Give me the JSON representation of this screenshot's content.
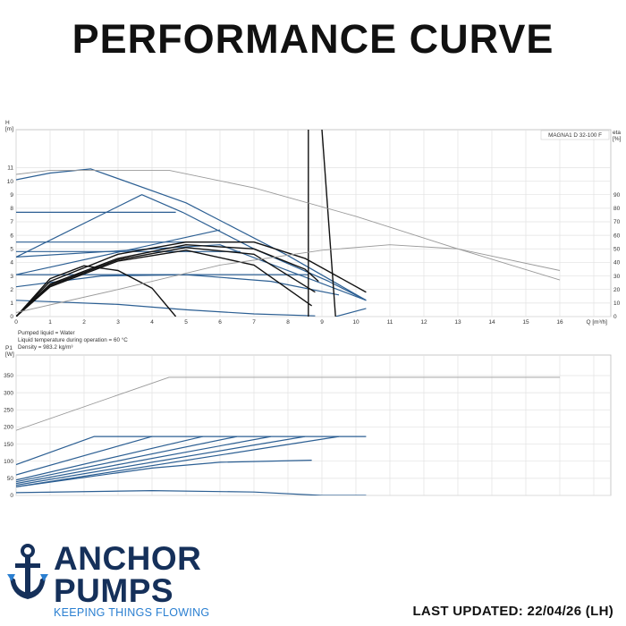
{
  "page": {
    "title": "PERFORMANCE CURVE"
  },
  "footer": {
    "brand_line1": "ANCHOR",
    "brand_line2": "PUMPS",
    "tagline": "KEEPING THINGS FLOWING",
    "last_updated": "LAST UPDATED: 22/04/26 (LH)"
  },
  "colors": {
    "curve_blue": "#2c5f93",
    "curve_black": "#111111",
    "curve_grey": "#9a9a9a",
    "brand_navy": "#15305a",
    "brand_blue": "#2a7fd1"
  },
  "chart_data": [
    {
      "type": "line",
      "model_label": "MAGNA1 D 32-100 F",
      "ylabel_lines": [
        "H",
        "[m]"
      ],
      "y2label_lines": [
        "eta",
        "[%]"
      ],
      "xlabel": "Q [m³/h]",
      "xlim": [
        0,
        17.5
      ],
      "ylim": [
        0,
        13.8
      ],
      "y2lim": [
        0,
        138
      ],
      "x_ticks": [
        "0",
        "1",
        "2",
        "3",
        "4",
        "5",
        "6",
        "7",
        "8",
        "9",
        "10",
        "11",
        "12",
        "13",
        "14",
        "15",
        "16"
      ],
      "y_ticks": [
        "0",
        "1",
        "2",
        "3",
        "4",
        "5",
        "6",
        "7",
        "8",
        "9",
        "10",
        "11"
      ],
      "y2_ticks": [
        "0",
        "10",
        "20",
        "30",
        "40",
        "50",
        "60",
        "70",
        "80",
        "90"
      ],
      "notes": [
        "Pumped liquid = Water",
        "Liquid temperature during operation = 60 °C",
        "Density = 983.2 kg/m³"
      ],
      "grid": true,
      "series": [
        {
          "color": "blue",
          "points": [
            [
              0,
              10.1
            ],
            [
              1,
              10.6
            ],
            [
              2.2,
              10.9
            ],
            [
              5,
              8.4
            ],
            [
              8,
              4.5
            ],
            [
              10.3,
              1.2
            ]
          ]
        },
        {
          "color": "blue",
          "points": [
            [
              0,
              7.7
            ],
            [
              4.7,
              7.7
            ]
          ]
        },
        {
          "color": "blue",
          "points": [
            [
              0,
              4.4
            ],
            [
              3.7,
              9.0
            ],
            [
              4.9,
              7.7
            ],
            [
              7,
              5.0
            ],
            [
              9.2,
              2.6
            ],
            [
              10.3,
              1.2
            ]
          ]
        },
        {
          "color": "blue",
          "points": [
            [
              0,
              5.5
            ],
            [
              6.6,
              5.5
            ]
          ]
        },
        {
          "color": "blue",
          "points": [
            [
              0,
              4.8
            ],
            [
              6.6,
              4.8
            ]
          ]
        },
        {
          "color": "blue",
          "points": [
            [
              0,
              4.4
            ],
            [
              6.0,
              5.3
            ],
            [
              10.3,
              1.2
            ]
          ]
        },
        {
          "color": "blue",
          "points": [
            [
              0,
              3.1
            ],
            [
              6.0,
              6.4
            ]
          ]
        },
        {
          "color": "blue",
          "points": [
            [
              0,
              3.1
            ],
            [
              8.6,
              3.1
            ]
          ]
        },
        {
          "color": "blue",
          "points": [
            [
              0,
              2.2
            ],
            [
              2.5,
              3.0
            ],
            [
              5,
              3.1
            ],
            [
              7.5,
              2.6
            ],
            [
              9.5,
              1.6
            ]
          ]
        },
        {
          "color": "blue",
          "points": [
            [
              0,
              1.2
            ],
            [
              3,
              0.9
            ],
            [
              5,
              0.5
            ],
            [
              7,
              0.2
            ],
            [
              8.8,
              0.05
            ]
          ]
        },
        {
          "color": "blue",
          "points": [
            [
              9.4,
              0
            ],
            [
              10.3,
              0.6
            ]
          ]
        },
        {
          "color": "black",
          "points": [
            [
              0,
              0
            ],
            [
              1,
              2.6
            ],
            [
              3,
              4.6
            ],
            [
              5,
              5.5
            ],
            [
              7,
              5.5
            ],
            [
              8.5,
              4.3
            ],
            [
              10.3,
              1.8
            ]
          ]
        },
        {
          "color": "black",
          "points": [
            [
              0,
              0
            ],
            [
              1,
              2.4
            ],
            [
              3,
              4.3
            ],
            [
              5,
              5.3
            ],
            [
              7,
              5.0
            ],
            [
              8.5,
              3.5
            ],
            [
              8.9,
              2.6
            ]
          ]
        },
        {
          "color": "black",
          "points": [
            [
              0,
              0
            ],
            [
              1,
              2.3
            ],
            [
              3,
              4.2
            ],
            [
              5,
              5.1
            ],
            [
              7,
              4.6
            ],
            [
              8.8,
              1.8
            ]
          ]
        },
        {
          "color": "black",
          "points": [
            [
              0,
              0
            ],
            [
              1,
              2.2
            ],
            [
              3,
              4.1
            ],
            [
              5,
              4.9
            ],
            [
              7,
              3.8
            ],
            [
              8.7,
              0.8
            ]
          ]
        },
        {
          "color": "black",
          "points": [
            [
              0,
              0
            ],
            [
              1,
              2.8
            ],
            [
              2,
              3.75
            ],
            [
              3,
              3.4
            ],
            [
              4,
              2.1
            ],
            [
              4.7,
              0
            ]
          ]
        },
        {
          "color": "black",
          "points": [
            [
              8.6,
              0
            ],
            [
              8.6,
              13.8
            ]
          ]
        },
        {
          "color": "black",
          "points": [
            [
              9.4,
              0
            ],
            [
              9.0,
              13.8
            ]
          ]
        },
        {
          "color": "grey",
          "points": [
            [
              0,
              10.5
            ],
            [
              1,
              10.8
            ],
            [
              4.5,
              10.8
            ],
            [
              7,
              9.5
            ],
            [
              10,
              7.4
            ],
            [
              13,
              5.0
            ],
            [
              16,
              3.4
            ]
          ]
        },
        {
          "color": "grey",
          "points": [
            [
              0,
              0.3
            ],
            [
              3,
              2.0
            ],
            [
              6,
              3.8
            ],
            [
              9,
              4.9
            ],
            [
              11,
              5.3
            ],
            [
              13,
              5.0
            ],
            [
              16,
              2.7
            ]
          ]
        }
      ]
    },
    {
      "type": "line",
      "ylabel_lines": [
        "P1",
        "[W]"
      ],
      "xlim": [
        0,
        17.5
      ],
      "ylim": [
        0,
        410
      ],
      "y_ticks": [
        "0",
        "50",
        "100",
        "150",
        "200",
        "250",
        "300",
        "350"
      ],
      "grid": true,
      "series": [
        {
          "color": "grey",
          "points": [
            [
              0,
              190
            ],
            [
              4.5,
              345
            ],
            [
              16,
              345
            ]
          ]
        },
        {
          "color": "blue",
          "points": [
            [
              0,
              90
            ],
            [
              2.3,
              172
            ],
            [
              10.3,
              172
            ]
          ]
        },
        {
          "color": "blue",
          "points": [
            [
              0,
              60
            ],
            [
              4,
              172
            ]
          ]
        },
        {
          "color": "blue",
          "points": [
            [
              0,
              45
            ],
            [
              5.5,
              172
            ]
          ]
        },
        {
          "color": "blue",
          "points": [
            [
              0,
              40
            ],
            [
              6.5,
              172
            ]
          ]
        },
        {
          "color": "blue",
          "points": [
            [
              0,
              35
            ],
            [
              7.5,
              172
            ]
          ]
        },
        {
          "color": "blue",
          "points": [
            [
              0,
              30
            ],
            [
              8.5,
              172
            ]
          ]
        },
        {
          "color": "blue",
          "points": [
            [
              0,
              25
            ],
            [
              9.5,
              172
            ]
          ]
        },
        {
          "color": "blue",
          "points": [
            [
              0,
              25
            ],
            [
              4,
              80
            ],
            [
              6,
              97
            ],
            [
              8.7,
              103
            ]
          ]
        },
        {
          "color": "blue",
          "points": [
            [
              0,
              8
            ],
            [
              4,
              14
            ],
            [
              7,
              10
            ],
            [
              9,
              0
            ],
            [
              10.3,
              0
            ]
          ]
        }
      ]
    }
  ]
}
